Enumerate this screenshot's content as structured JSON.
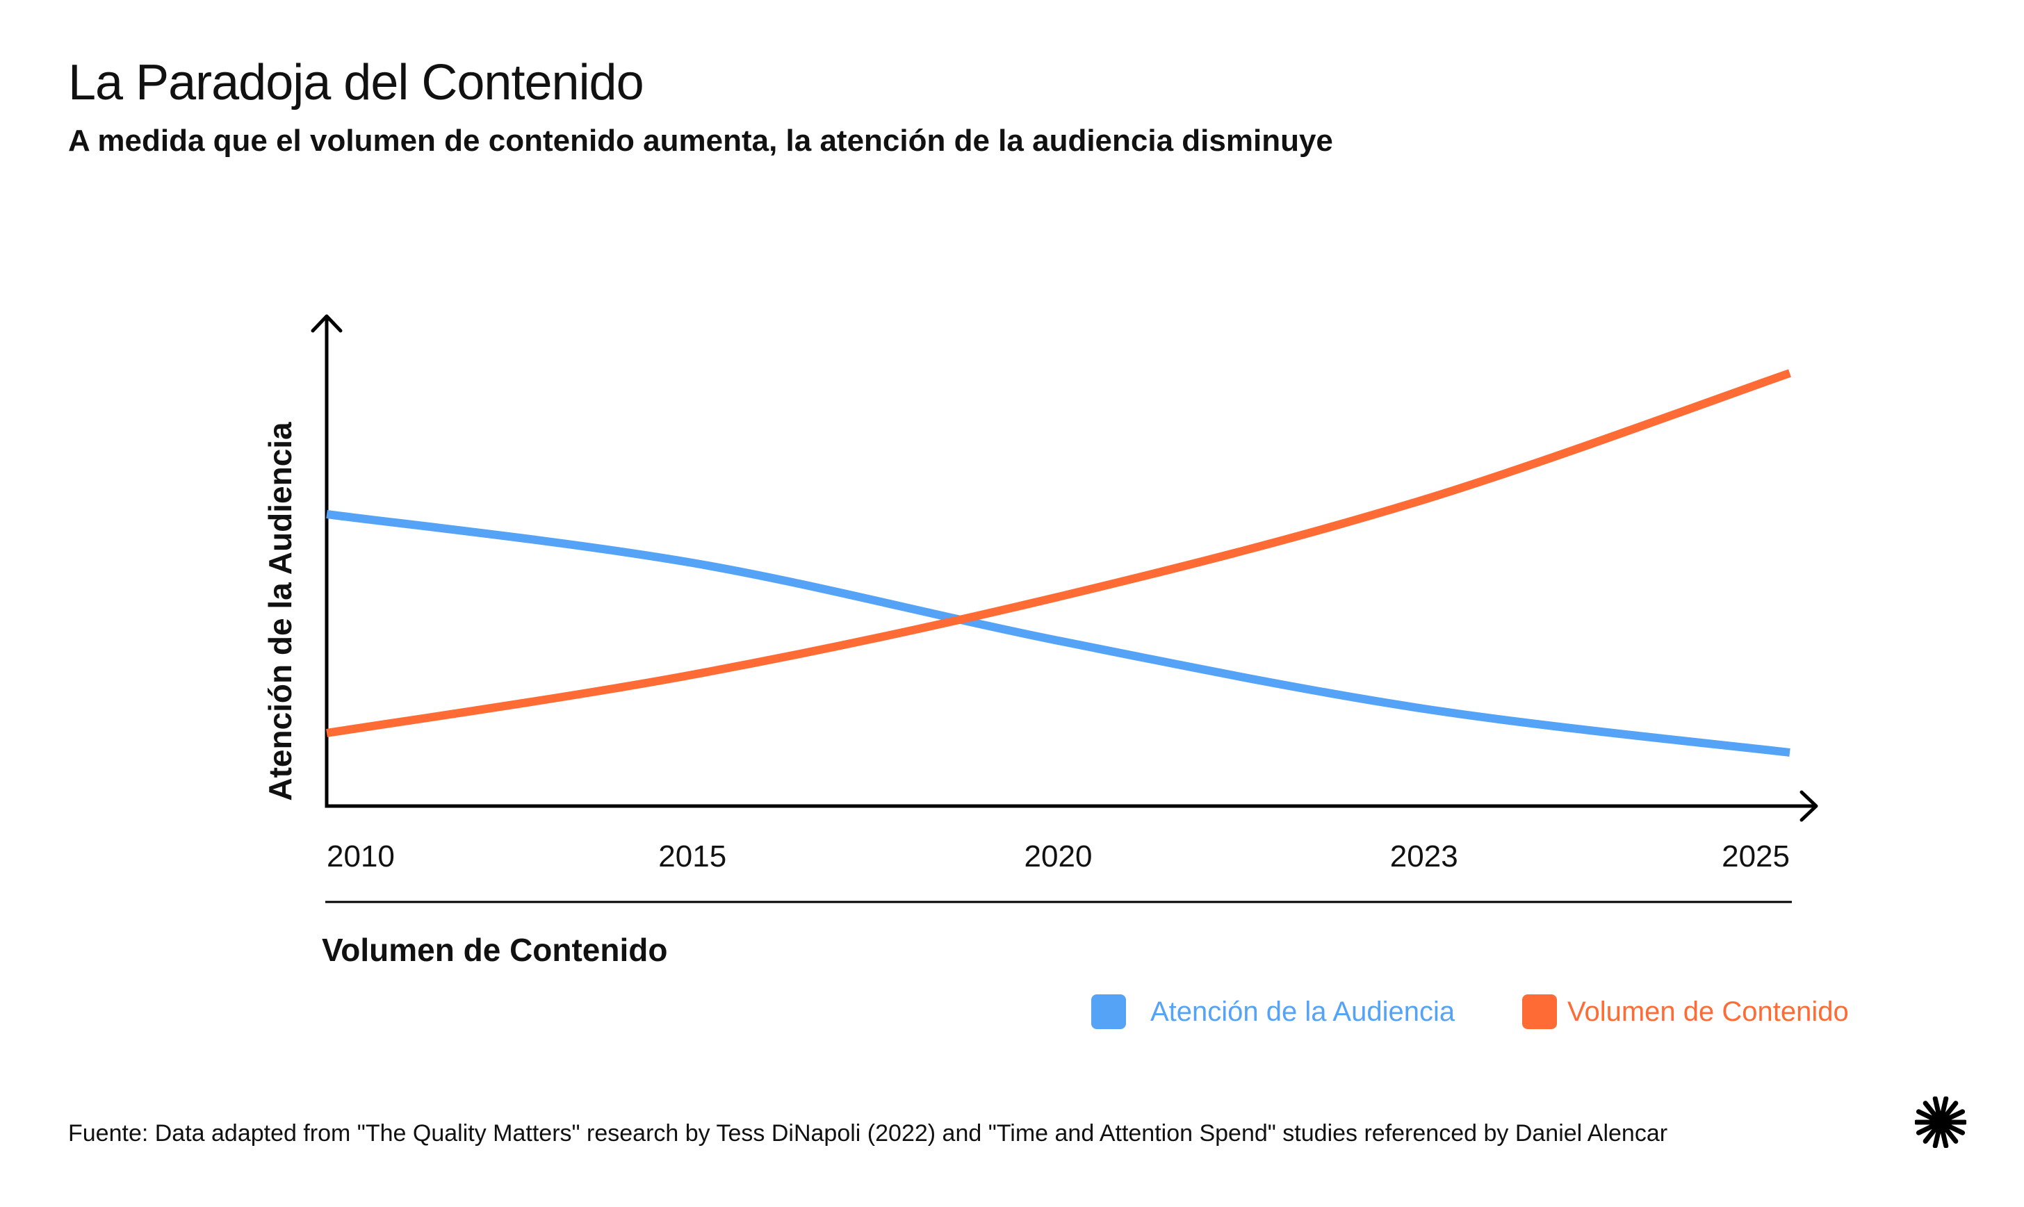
{
  "header": {
    "title": "La Paradoja del Contenido",
    "subtitle": "A medida que el volumen de contenido aumenta, la atención de la audiencia disminuye"
  },
  "chart_data": {
    "type": "line",
    "title": "La Paradoja del Contenido",
    "subtitle": "A medida que el volumen de contenido aumenta, la atención de la audiencia disminuye",
    "xlabel": "Volumen de Contenido",
    "ylabel": "Atención de la Audiencia",
    "categories": [
      "2010",
      "2015",
      "2020",
      "2023",
      "2025"
    ],
    "ylim": [
      0,
      100
    ],
    "grid": false,
    "axis_ticks_numeric": false,
    "legend_position": "bottom-right",
    "series": [
      {
        "name": "Atención de la Audiencia",
        "color": "#55A3F7",
        "values": [
          60,
          50,
          34,
          20,
          11
        ]
      },
      {
        "name": "Volumen de Contenido",
        "color": "#FF6B35",
        "values": [
          15,
          27,
          43,
          63,
          89
        ]
      }
    ]
  },
  "footer": {
    "source": "Fuente: Data adapted from \"The Quality Matters\" research by Tess DiNapoli (2022) and \"Time and Attention Spend\" studies referenced by Daniel Alencar",
    "logo_icon": "starburst-icon"
  }
}
